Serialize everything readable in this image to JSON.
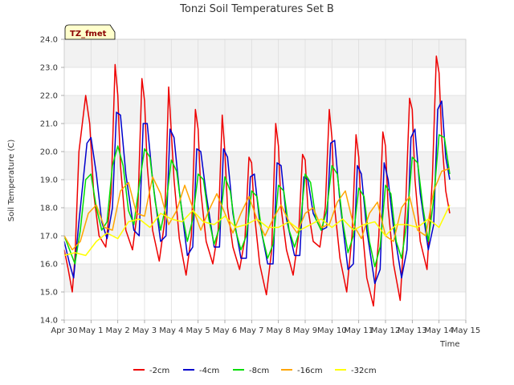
{
  "chart_data": {
    "type": "line",
    "title": "Tonzi Soil Temperatures Set B",
    "xlabel": "Time",
    "ylabel": "Soil Temperature (C)",
    "badge": "TZ_fmet",
    "xlim": [
      0,
      15
    ],
    "ylim": [
      14.0,
      24.0
    ],
    "x_ticks": [
      "Apr 30",
      "May 1",
      "May 2",
      "May 3",
      "May 4",
      "May 5",
      "May 6",
      "May 7",
      "May 8",
      "May 9",
      "May 10",
      "May 11",
      "May 12",
      "May 13",
      "May 14",
      "May 15"
    ],
    "y_ticks": [
      "14.0",
      "15.0",
      "16.0",
      "17.0",
      "18.0",
      "19.0",
      "20.0",
      "21.0",
      "22.0",
      "23.0",
      "24.0"
    ],
    "grid": true,
    "legend_position": "bottom",
    "colors": {
      "bg_band": "#f2f2f2",
      "grid": "#dddddd",
      "badge_fill": "#ffffcc"
    },
    "series": [
      {
        "name": "-2cm",
        "color": "#ee0000",
        "x": [
          0.0,
          0.15,
          0.3,
          0.4,
          0.55,
          0.8,
          0.95,
          1.1,
          1.3,
          1.55,
          1.75,
          1.9,
          2.0,
          2.1,
          2.3,
          2.55,
          2.75,
          2.9,
          3.0,
          3.1,
          3.3,
          3.55,
          3.75,
          3.9,
          3.95,
          4.1,
          4.3,
          4.55,
          4.75,
          4.9,
          5.0,
          5.1,
          5.3,
          5.55,
          5.75,
          5.9,
          6.0,
          6.1,
          6.3,
          6.55,
          6.75,
          6.9,
          7.0,
          7.1,
          7.3,
          7.55,
          7.75,
          7.9,
          8.0,
          8.1,
          8.3,
          8.55,
          8.75,
          8.9,
          9.0,
          9.1,
          9.3,
          9.55,
          9.75,
          9.9,
          10.0,
          10.1,
          10.3,
          10.55,
          10.75,
          10.9,
          11.0,
          11.1,
          11.3,
          11.55,
          11.75,
          11.9,
          12.0,
          12.1,
          12.3,
          12.55,
          12.75,
          12.9,
          13.0,
          13.1,
          13.3,
          13.55,
          13.75,
          13.9,
          14.0,
          14.1,
          14.25,
          14.4
        ],
        "y": [
          16.5,
          15.8,
          15.0,
          16.2,
          20.0,
          22.0,
          21.0,
          18.5,
          17.0,
          16.6,
          18.5,
          23.1,
          22.0,
          19.5,
          17.2,
          16.5,
          18.0,
          22.6,
          21.8,
          19.5,
          17.2,
          16.1,
          17.5,
          22.3,
          21.5,
          19.0,
          16.9,
          15.6,
          17.0,
          21.5,
          20.8,
          18.6,
          16.8,
          16.0,
          17.2,
          21.3,
          20.0,
          18.0,
          16.6,
          15.8,
          16.9,
          19.8,
          19.6,
          17.8,
          16.0,
          14.9,
          16.5,
          21.0,
          20.2,
          18.0,
          16.5,
          15.6,
          17.0,
          19.9,
          19.7,
          18.0,
          16.8,
          16.6,
          18.0,
          21.5,
          20.5,
          18.0,
          16.2,
          15.0,
          17.0,
          20.6,
          19.8,
          17.6,
          15.5,
          14.5,
          17.0,
          20.7,
          20.2,
          18.0,
          16.0,
          14.7,
          18.0,
          21.9,
          21.5,
          19.0,
          16.8,
          15.8,
          19.0,
          23.4,
          22.8,
          20.5,
          18.6,
          17.8
        ]
      },
      {
        "name": "-4cm",
        "color": "#0000cc",
        "x": [
          0.0,
          0.2,
          0.35,
          0.55,
          0.85,
          1.0,
          1.2,
          1.4,
          1.6,
          1.8,
          1.95,
          2.1,
          2.3,
          2.6,
          2.8,
          2.95,
          3.1,
          3.3,
          3.6,
          3.8,
          3.95,
          4.1,
          4.3,
          4.6,
          4.8,
          4.95,
          5.1,
          5.3,
          5.6,
          5.8,
          5.95,
          6.1,
          6.3,
          6.6,
          6.8,
          6.95,
          7.1,
          7.3,
          7.6,
          7.8,
          7.95,
          8.1,
          8.3,
          8.6,
          8.8,
          8.95,
          9.1,
          9.3,
          9.6,
          9.8,
          9.95,
          10.1,
          10.3,
          10.6,
          10.8,
          10.95,
          11.1,
          11.3,
          11.6,
          11.8,
          11.95,
          12.1,
          12.3,
          12.6,
          12.8,
          12.95,
          13.1,
          13.3,
          13.6,
          13.8,
          13.95,
          14.1,
          14.25,
          14.4
        ],
        "y": [
          16.8,
          16.0,
          15.5,
          17.5,
          20.3,
          20.5,
          19.2,
          17.5,
          16.9,
          18.0,
          21.4,
          21.3,
          19.2,
          17.2,
          17.0,
          21.0,
          21.0,
          19.0,
          16.8,
          17.0,
          20.8,
          20.5,
          18.6,
          16.3,
          16.6,
          20.1,
          20.0,
          18.5,
          16.6,
          16.6,
          20.1,
          19.8,
          17.8,
          16.2,
          16.2,
          19.1,
          19.2,
          17.5,
          16.0,
          16.0,
          19.6,
          19.5,
          17.6,
          16.3,
          16.3,
          19.1,
          19.0,
          17.8,
          17.2,
          17.3,
          20.3,
          20.4,
          18.2,
          15.8,
          16.0,
          19.5,
          19.2,
          17.2,
          15.3,
          15.8,
          19.6,
          19.0,
          17.3,
          15.5,
          16.5,
          20.5,
          20.8,
          18.5,
          16.5,
          17.4,
          21.5,
          21.8,
          19.8,
          19.0
        ]
      },
      {
        "name": "-8cm",
        "color": "#00dd00",
        "x": [
          0.0,
          0.2,
          0.4,
          0.6,
          0.8,
          1.0,
          1.2,
          1.4,
          1.6,
          1.8,
          2.0,
          2.2,
          2.4,
          2.6,
          2.8,
          3.0,
          3.2,
          3.4,
          3.6,
          3.8,
          4.0,
          4.2,
          4.4,
          4.6,
          4.8,
          5.0,
          5.2,
          5.4,
          5.6,
          5.8,
          6.0,
          6.2,
          6.4,
          6.6,
          6.8,
          7.0,
          7.2,
          7.4,
          7.6,
          7.8,
          8.0,
          8.2,
          8.4,
          8.6,
          8.8,
          9.0,
          9.2,
          9.4,
          9.6,
          9.8,
          10.0,
          10.2,
          10.4,
          10.6,
          10.8,
          11.0,
          11.2,
          11.4,
          11.6,
          11.8,
          12.0,
          12.2,
          12.4,
          12.6,
          12.8,
          13.0,
          13.2,
          13.4,
          13.6,
          13.8,
          14.0,
          14.2,
          14.4
        ],
        "y": [
          17.0,
          16.5,
          16.0,
          17.2,
          19.0,
          19.2,
          18.0,
          17.2,
          17.5,
          19.5,
          20.2,
          19.5,
          17.9,
          17.4,
          18.8,
          20.1,
          19.8,
          18.2,
          17.2,
          18.1,
          19.7,
          19.3,
          17.8,
          16.8,
          17.6,
          19.2,
          19.0,
          17.6,
          16.7,
          17.3,
          19.1,
          18.6,
          17.2,
          16.5,
          17.0,
          18.6,
          18.4,
          17.0,
          16.2,
          16.7,
          18.8,
          18.6,
          17.2,
          16.6,
          17.2,
          19.2,
          18.9,
          17.6,
          17.2,
          17.9,
          19.5,
          19.2,
          17.5,
          16.4,
          17.0,
          18.7,
          18.4,
          16.8,
          15.9,
          16.6,
          18.8,
          18.5,
          16.8,
          16.2,
          17.5,
          19.8,
          19.6,
          18.0,
          16.8,
          18.3,
          20.6,
          20.5,
          19.2
        ]
      },
      {
        "name": "-16cm",
        "color": "#ffa500",
        "x": [
          0.0,
          0.3,
          0.6,
          0.9,
          1.2,
          1.5,
          1.8,
          2.1,
          2.4,
          2.7,
          3.0,
          3.3,
          3.6,
          3.9,
          4.2,
          4.5,
          4.8,
          5.1,
          5.4,
          5.7,
          6.0,
          6.3,
          6.6,
          6.9,
          7.2,
          7.5,
          7.8,
          8.1,
          8.4,
          8.7,
          9.0,
          9.3,
          9.6,
          9.9,
          10.2,
          10.5,
          10.8,
          11.1,
          11.4,
          11.7,
          12.0,
          12.3,
          12.6,
          12.9,
          13.2,
          13.5,
          13.8,
          14.1,
          14.4
        ],
        "y": [
          17.0,
          16.5,
          16.8,
          17.8,
          18.1,
          17.3,
          17.2,
          18.6,
          18.9,
          17.8,
          17.7,
          19.1,
          18.5,
          17.4,
          17.9,
          18.8,
          18.0,
          17.2,
          17.9,
          18.5,
          17.8,
          17.1,
          17.8,
          18.4,
          17.6,
          17.0,
          17.6,
          18.1,
          17.5,
          17.1,
          17.8,
          18.0,
          17.3,
          17.4,
          18.2,
          18.6,
          17.4,
          16.9,
          17.8,
          18.2,
          17.0,
          16.8,
          18.0,
          18.4,
          17.2,
          17.0,
          18.6,
          19.3,
          19.4
        ]
      },
      {
        "name": "-32cm",
        "color": "#ffff00",
        "x": [
          0.0,
          0.4,
          0.8,
          1.2,
          1.6,
          2.0,
          2.4,
          2.8,
          3.2,
          3.6,
          4.0,
          4.4,
          4.8,
          5.2,
          5.6,
          6.0,
          6.4,
          6.8,
          7.2,
          7.6,
          8.0,
          8.4,
          8.8,
          9.2,
          9.6,
          10.0,
          10.4,
          10.8,
          11.2,
          11.6,
          12.0,
          12.4,
          12.8,
          13.2,
          13.6,
          14.0,
          14.4
        ],
        "y": [
          16.3,
          16.4,
          16.3,
          16.8,
          17.1,
          16.9,
          17.5,
          17.6,
          17.3,
          17.8,
          17.6,
          17.5,
          17.9,
          17.5,
          17.4,
          17.7,
          17.3,
          17.4,
          17.6,
          17.3,
          17.3,
          17.5,
          17.2,
          17.4,
          17.6,
          17.3,
          17.6,
          17.2,
          17.4,
          17.5,
          17.0,
          17.4,
          17.4,
          17.3,
          17.6,
          17.3,
          18.1
        ]
      }
    ]
  }
}
